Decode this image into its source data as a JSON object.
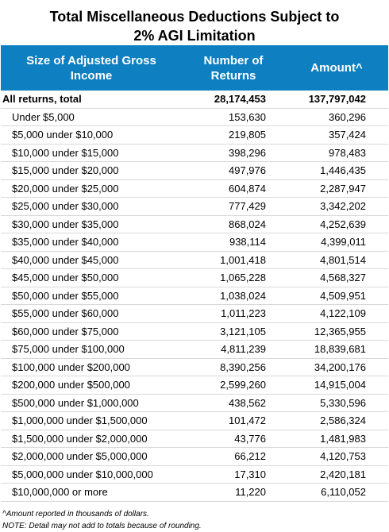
{
  "title_line1": "Total Miscellaneous Deductions Subject to",
  "title_line2": "2% AGI Limitation",
  "headers": {
    "size_line1": "Size of Adjusted Gross",
    "size_line2": "Income",
    "returns_line1": "Number of",
    "returns_line2": "Returns",
    "amount": "Amount^"
  },
  "rows": [
    {
      "label": "All returns, total",
      "returns": "28,174,453",
      "amount": "137,797,042"
    },
    {
      "label": "Under $5,000",
      "returns": "153,630",
      "amount": "360,296"
    },
    {
      "label": "$5,000 under $10,000",
      "returns": "219,805",
      "amount": "357,424"
    },
    {
      "label": "$10,000 under $15,000",
      "returns": "398,296",
      "amount": "978,483"
    },
    {
      "label": "$15,000 under $20,000",
      "returns": "497,976",
      "amount": "1,446,435"
    },
    {
      "label": "$20,000 under $25,000",
      "returns": "604,874",
      "amount": "2,287,947"
    },
    {
      "label": "$25,000 under $30,000",
      "returns": "777,429",
      "amount": "3,342,202"
    },
    {
      "label": "$30,000 under $35,000",
      "returns": "868,024",
      "amount": "4,252,639"
    },
    {
      "label": "$35,000 under $40,000",
      "returns": "938,114",
      "amount": "4,399,011"
    },
    {
      "label": "$40,000 under $45,000",
      "returns": "1,001,418",
      "amount": "4,801,514"
    },
    {
      "label": "$45,000 under $50,000",
      "returns": "1,065,228",
      "amount": "4,568,327"
    },
    {
      "label": "$50,000 under $55,000",
      "returns": "1,038,024",
      "amount": "4,509,951"
    },
    {
      "label": "$55,000 under $60,000",
      "returns": "1,011,223",
      "amount": "4,122,109"
    },
    {
      "label": "$60,000 under $75,000",
      "returns": "3,121,105",
      "amount": "12,365,955"
    },
    {
      "label": "$75,000 under $100,000",
      "returns": "4,811,239",
      "amount": "18,839,681"
    },
    {
      "label": "$100,000 under $200,000",
      "returns": "8,390,256",
      "amount": "34,200,176"
    },
    {
      "label": "$200,000 under $500,000",
      "returns": "2,599,260",
      "amount": "14,915,004"
    },
    {
      "label": "$500,000 under $1,000,000",
      "returns": "438,562",
      "amount": "5,330,596"
    },
    {
      "label": "$1,000,000 under $1,500,000",
      "returns": "101,472",
      "amount": "2,586,324"
    },
    {
      "label": "$1,500,000 under $2,000,000",
      "returns": "43,776",
      "amount": "1,481,983"
    },
    {
      "label": "$2,000,000 under $5,000,000",
      "returns": "66,212",
      "amount": "4,120,753"
    },
    {
      "label": "$5,000,000 under $10,000,000",
      "returns": "17,310",
      "amount": "2,420,181"
    },
    {
      "label": "$10,000,000 or more",
      "returns": "11,220",
      "amount": "6,110,052"
    }
  ],
  "notes": [
    "^Amount reported in thousands of dollars.",
    "NOTE: Detail may not add to totals because of rounding."
  ],
  "colors": {
    "header_bg": "#0e7fc0",
    "header_text": "#ffffff",
    "row_border": "#d9d9d9"
  }
}
